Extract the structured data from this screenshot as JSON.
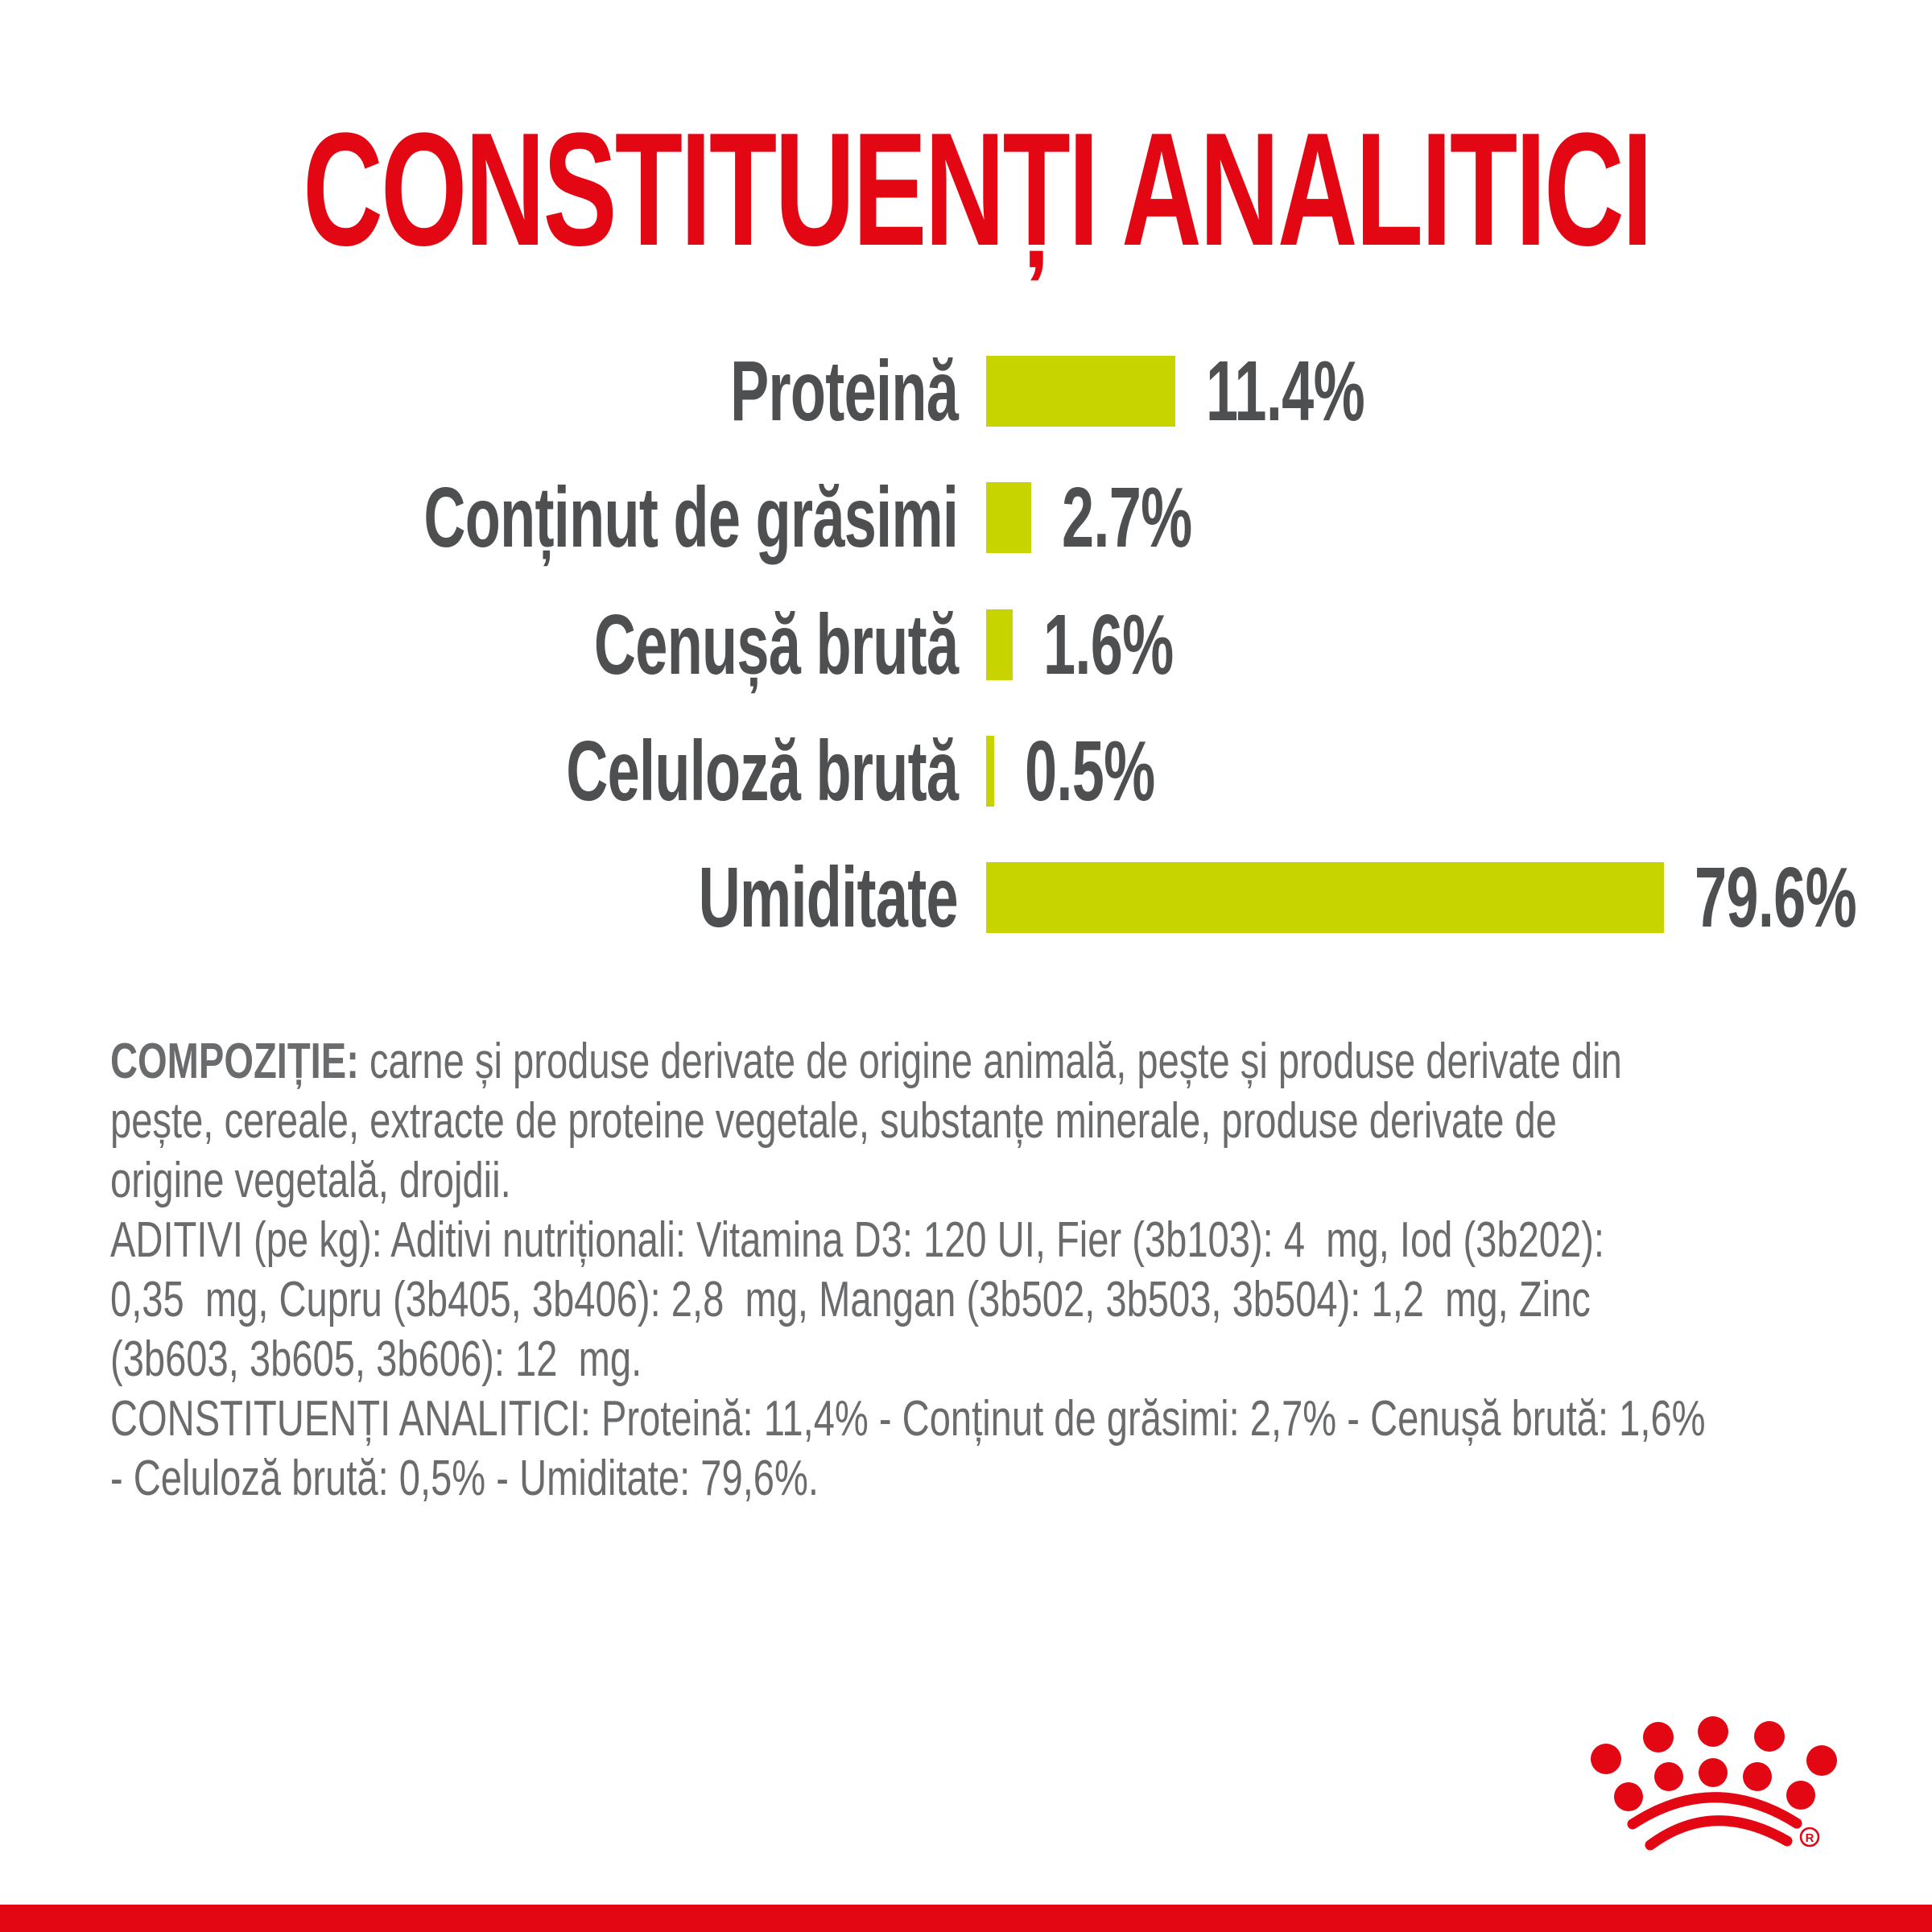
{
  "title": {
    "text": "CONSTITUENȚI ANALITICI"
  },
  "colors": {
    "brand_red": "#E30613",
    "bar_lime": "#C8D400",
    "chart_text_grey": "#4E4F51",
    "body_text_grey": "#6A6B6D"
  },
  "chart_data": {
    "type": "bar",
    "orientation": "horizontal",
    "title": "CONSTITUENȚI ANALITICI",
    "categories": [
      "Proteină",
      "Conținut de grăsimi",
      "Cenușă brută",
      "Celuloză brută",
      "Umiditate"
    ],
    "values": [
      11.4,
      2.7,
      1.6,
      0.5,
      79.6
    ],
    "value_labels": [
      "11.4%",
      "2.7%",
      "1.6%",
      "0.5%",
      "79.6%"
    ],
    "unit": "%",
    "grid": false,
    "legend": "none",
    "axes": "none",
    "note": "bar lengths proportional to value, longest bar (Umiditate) clamped to chart width"
  },
  "body_text": {
    "lines": [
      {
        "bold": "COMPOZIȚIE:",
        "text": " carne și produse derivate de origine animală, pește și produse derivate din"
      },
      {
        "bold": "",
        "text": "pește, cereale, extracte de proteine vegetale, substanțe minerale, produse derivate de"
      },
      {
        "bold": "",
        "text": "origine vegetală, drojdii."
      },
      {
        "bold": "",
        "text": "ADITIVI (pe kg): Aditivi nutriționali: Vitamina D3: 120 UI, Fier (3b103): 4  mg, Iod (3b202):"
      },
      {
        "bold": "",
        "text": "0,35  mg, Cupru (3b405, 3b406): 2,8  mg, Mangan (3b502, 3b503, 3b504): 1,2  mg, Zinc"
      },
      {
        "bold": "",
        "text": "(3b603, 3b605, 3b606): 12  mg."
      },
      {
        "bold": "",
        "text": "CONSTITUENȚI ANALITICI: Proteină: 11,4% - Conținut de grăsimi: 2,7% - Cenușă brută: 1,6%"
      },
      {
        "bold": "",
        "text": "- Celuloză brută: 0,5% - Umiditate: 79,6%."
      }
    ]
  },
  "logo": {
    "name": "royal-canin-crown",
    "registered_mark": "®"
  }
}
